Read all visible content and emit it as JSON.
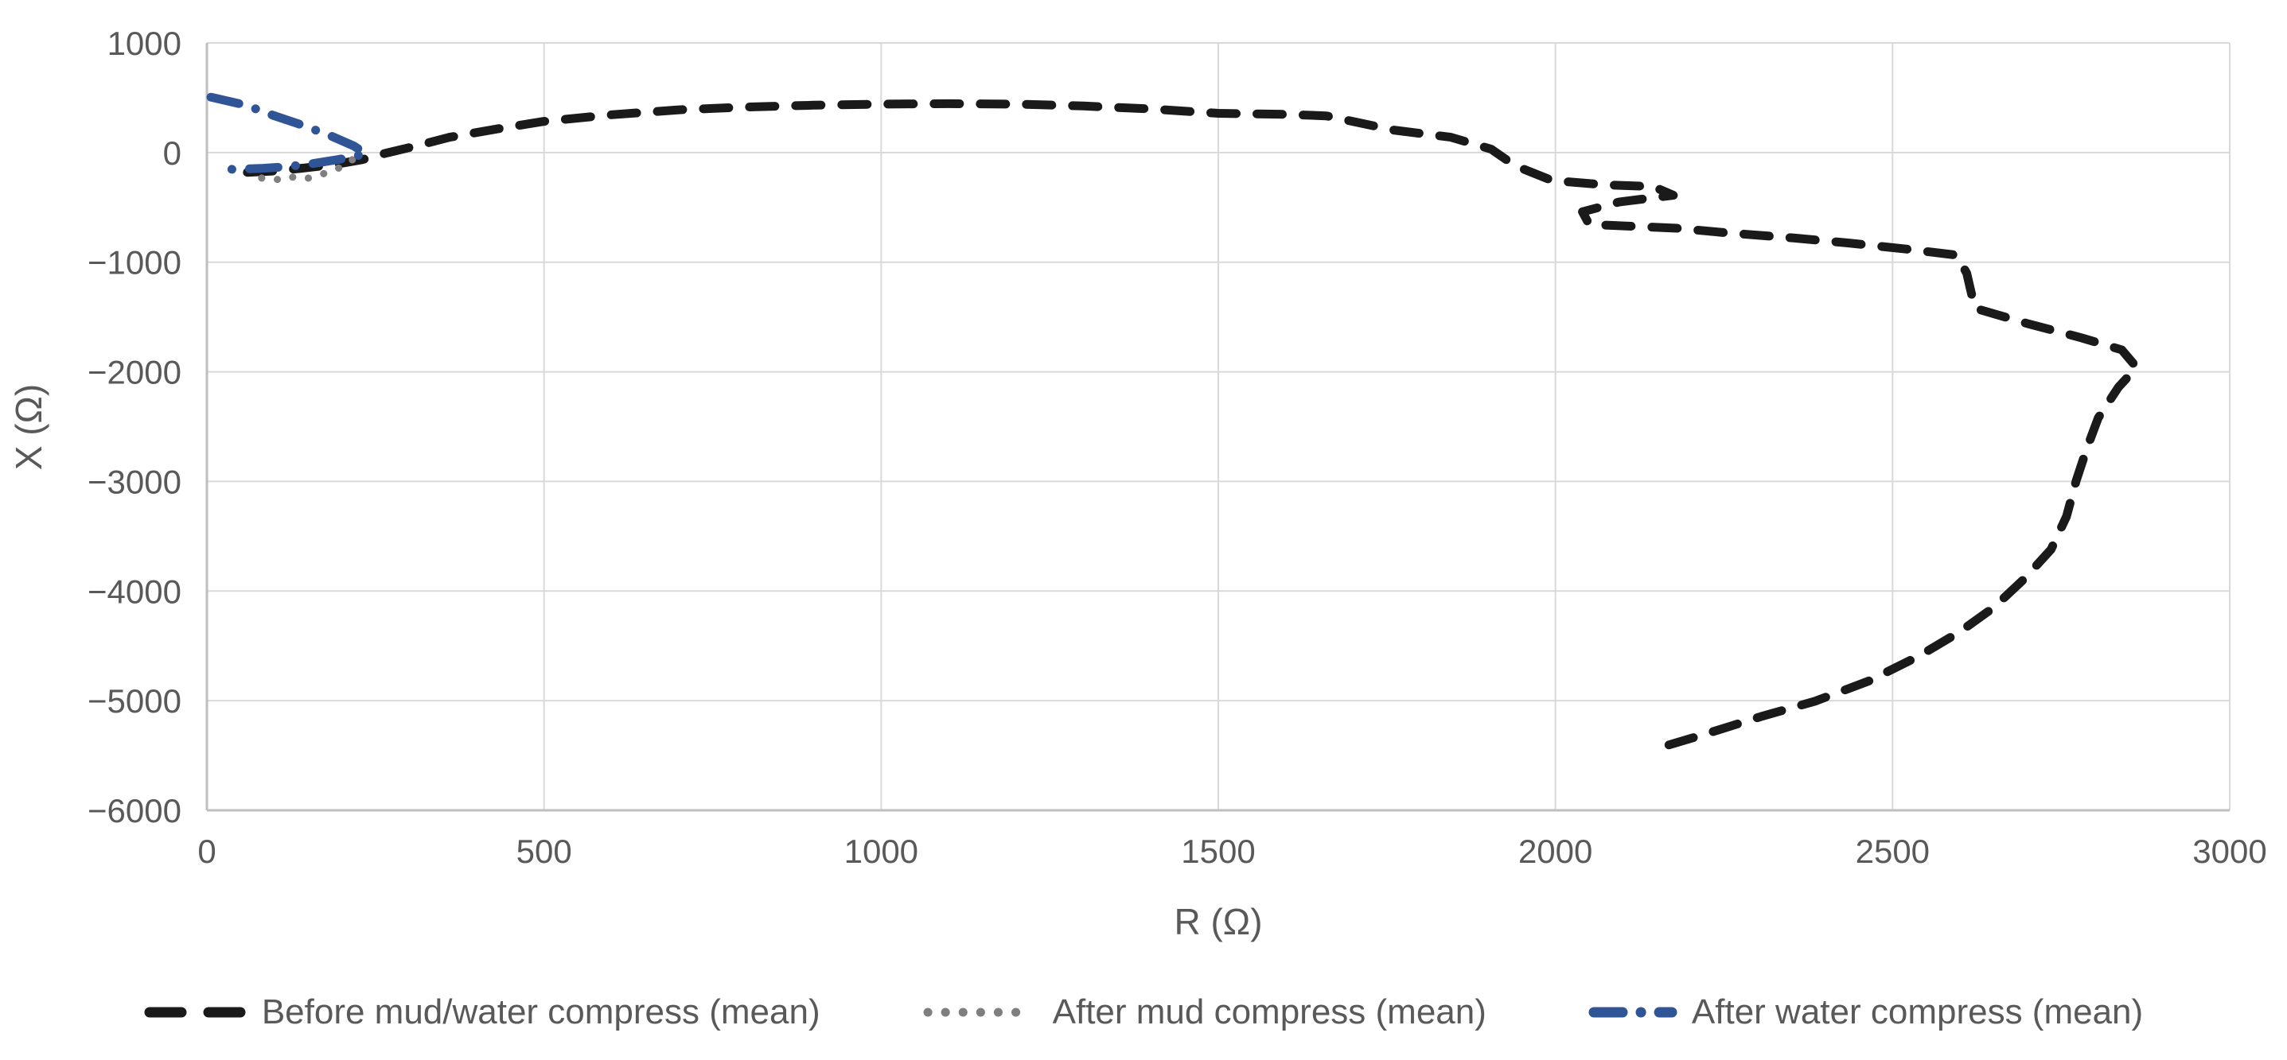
{
  "chart_data": {
    "type": "line",
    "title": "",
    "xlabel": "R (Ω)",
    "ylabel": "X (Ω)",
    "xlim": [
      0,
      3000
    ],
    "ylim": [
      -6000,
      1000
    ],
    "grid": true,
    "legend_position": "bottom",
    "x_ticks": [
      0,
      500,
      1000,
      1500,
      2000,
      2500,
      3000
    ],
    "x_tick_labels": [
      "0",
      "500",
      "1000",
      "1500",
      "2000",
      "2500",
      "3000"
    ],
    "y_ticks": [
      1000,
      0,
      -1000,
      -2000,
      -3000,
      -4000,
      -5000,
      -6000
    ],
    "y_tick_labels": [
      "1000",
      "0",
      "−1000",
      "−2000",
      "−3000",
      "−4000",
      "−5000",
      "−6000"
    ],
    "colors": {
      "grid": "#d9d9d9",
      "axis": "#bfbfbf",
      "text": "#595959",
      "series_black": "#1a1a1a",
      "series_gray": "#7f7f7f",
      "series_blue": "#2f5597"
    },
    "series": [
      {
        "name": "Before mud/water compress (mean)",
        "key": "before-mud-water-compress",
        "color": "#1a1a1a",
        "style": "dashed",
        "points": [
          [
            60,
            -180
          ],
          [
            100,
            -168
          ],
          [
            145,
            -140
          ],
          [
            190,
            -108
          ],
          [
            230,
            -65
          ],
          [
            266,
            -5
          ],
          [
            310,
            60
          ],
          [
            360,
            140
          ],
          [
            430,
            215
          ],
          [
            500,
            285
          ],
          [
            600,
            345
          ],
          [
            700,
            390
          ],
          [
            800,
            415
          ],
          [
            900,
            432
          ],
          [
            1000,
            442
          ],
          [
            1100,
            446
          ],
          [
            1200,
            442
          ],
          [
            1300,
            425
          ],
          [
            1400,
            398
          ],
          [
            1500,
            358
          ],
          [
            1590,
            350
          ],
          [
            1660,
            335
          ],
          [
            1760,
            205
          ],
          [
            1845,
            140
          ],
          [
            1905,
            30
          ],
          [
            1940,
            -120
          ],
          [
            1995,
            -255
          ],
          [
            2075,
            -295
          ],
          [
            2145,
            -310
          ],
          [
            2175,
            -390
          ],
          [
            2095,
            -450
          ],
          [
            2040,
            -540
          ],
          [
            2050,
            -655
          ],
          [
            2180,
            -690
          ],
          [
            2250,
            -730
          ],
          [
            2355,
            -780
          ],
          [
            2435,
            -825
          ],
          [
            2520,
            -880
          ],
          [
            2595,
            -935
          ],
          [
            2610,
            -1100
          ],
          [
            2622,
            -1420
          ],
          [
            2700,
            -1560
          ],
          [
            2780,
            -1690
          ],
          [
            2840,
            -1800
          ],
          [
            2862,
            -1960
          ],
          [
            2835,
            -2140
          ],
          [
            2805,
            -2420
          ],
          [
            2788,
            -2700
          ],
          [
            2772,
            -3000
          ],
          [
            2758,
            -3320
          ],
          [
            2735,
            -3620
          ],
          [
            2695,
            -3890
          ],
          [
            2650,
            -4150
          ],
          [
            2600,
            -4370
          ],
          [
            2540,
            -4590
          ],
          [
            2465,
            -4820
          ],
          [
            2385,
            -5005
          ],
          [
            2305,
            -5145
          ],
          [
            2222,
            -5305
          ],
          [
            2140,
            -5455
          ]
        ]
      },
      {
        "name": "After mud compress (mean)",
        "key": "after-mud-compress",
        "color": "#7f7f7f",
        "style": "dotted",
        "points": [
          [
            62,
            -148
          ],
          [
            72,
            -190
          ],
          [
            80,
            -230
          ],
          [
            93,
            -252
          ],
          [
            108,
            -243
          ],
          [
            122,
            -215
          ],
          [
            138,
            -243
          ],
          [
            152,
            -232
          ],
          [
            168,
            -205
          ],
          [
            182,
            -172
          ],
          [
            197,
            -138
          ],
          [
            207,
            -100
          ],
          [
            216,
            -65
          ],
          [
            226,
            -35
          ],
          [
            233,
            -15
          ]
        ]
      },
      {
        "name": "After water compress (mean)",
        "key": "after-water-compress",
        "color": "#2f5597",
        "style": "dash-dot",
        "points": [
          [
            6,
            505
          ],
          [
            58,
            432
          ],
          [
            98,
            340
          ],
          [
            134,
            266
          ],
          [
            180,
            162
          ],
          [
            218,
            60
          ],
          [
            236,
            -12
          ],
          [
            196,
            -62
          ],
          [
            158,
            -100
          ],
          [
            120,
            -128
          ],
          [
            80,
            -145
          ],
          [
            45,
            -152
          ],
          [
            14,
            -155
          ]
        ]
      }
    ],
    "layout": {
      "plot_left": 260,
      "plot_right": 2802,
      "plot_top": 54,
      "plot_bottom": 1019,
      "x_tick_label_y": 1085,
      "y_tick_label_x": 228,
      "xlabel_x": 1531,
      "xlabel_y": 1175,
      "ylabel_x": 52,
      "ylabel_y": 537
    }
  }
}
